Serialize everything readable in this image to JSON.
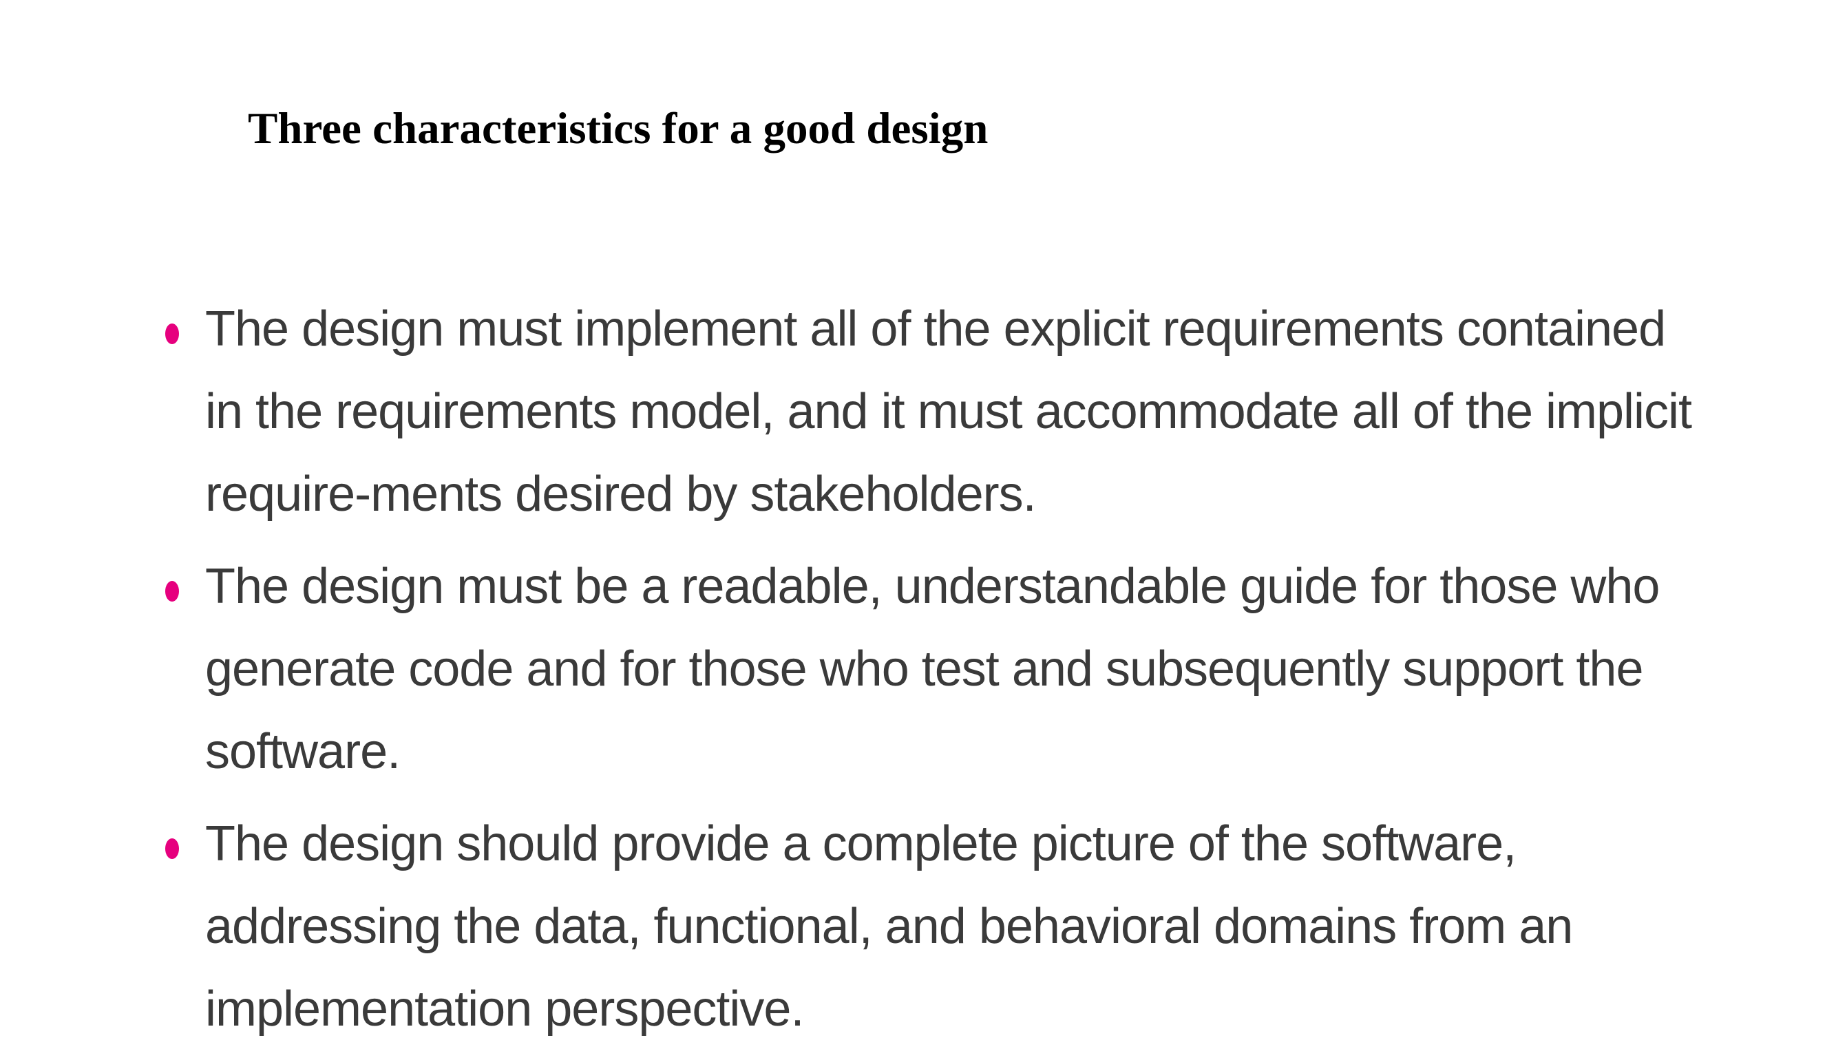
{
  "slide": {
    "title": "Three characteristics for a good design",
    "accent_color": "#e6007e",
    "bullets": [
      {
        "text": "The design must implement all of the explicit requirements contained in the requirements model, and it must accommodate all of the implicit require-ments desired by stakeholders."
      },
      {
        "text": "The design must be a readable, understandable guide for those who generate code and for those who test and subsequently support the software."
      },
      {
        "text": "The design should provide a complete picture of the software, addressing the data, functional, and behavioral domains from an implementation perspective."
      }
    ]
  }
}
